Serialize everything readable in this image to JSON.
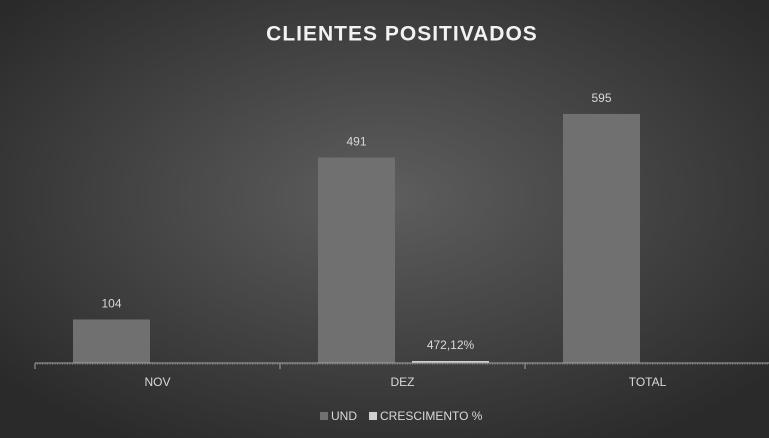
{
  "chart_data": {
    "type": "bar",
    "title": "CLIENTES POSITIVADOS",
    "categories": [
      "NOV",
      "DEZ",
      "TOTAL"
    ],
    "series": [
      {
        "name": "UND",
        "color": "#707070",
        "values": [
          104,
          491,
          595
        ]
      },
      {
        "name": "CRESCIMENTO %",
        "color": "#cfcfcf",
        "values": [
          null,
          4.7212,
          null
        ],
        "value_labels": [
          null,
          "472,12%",
          null
        ]
      }
    ],
    "ylim": [
      0,
      700
    ],
    "legend": "bottom"
  }
}
